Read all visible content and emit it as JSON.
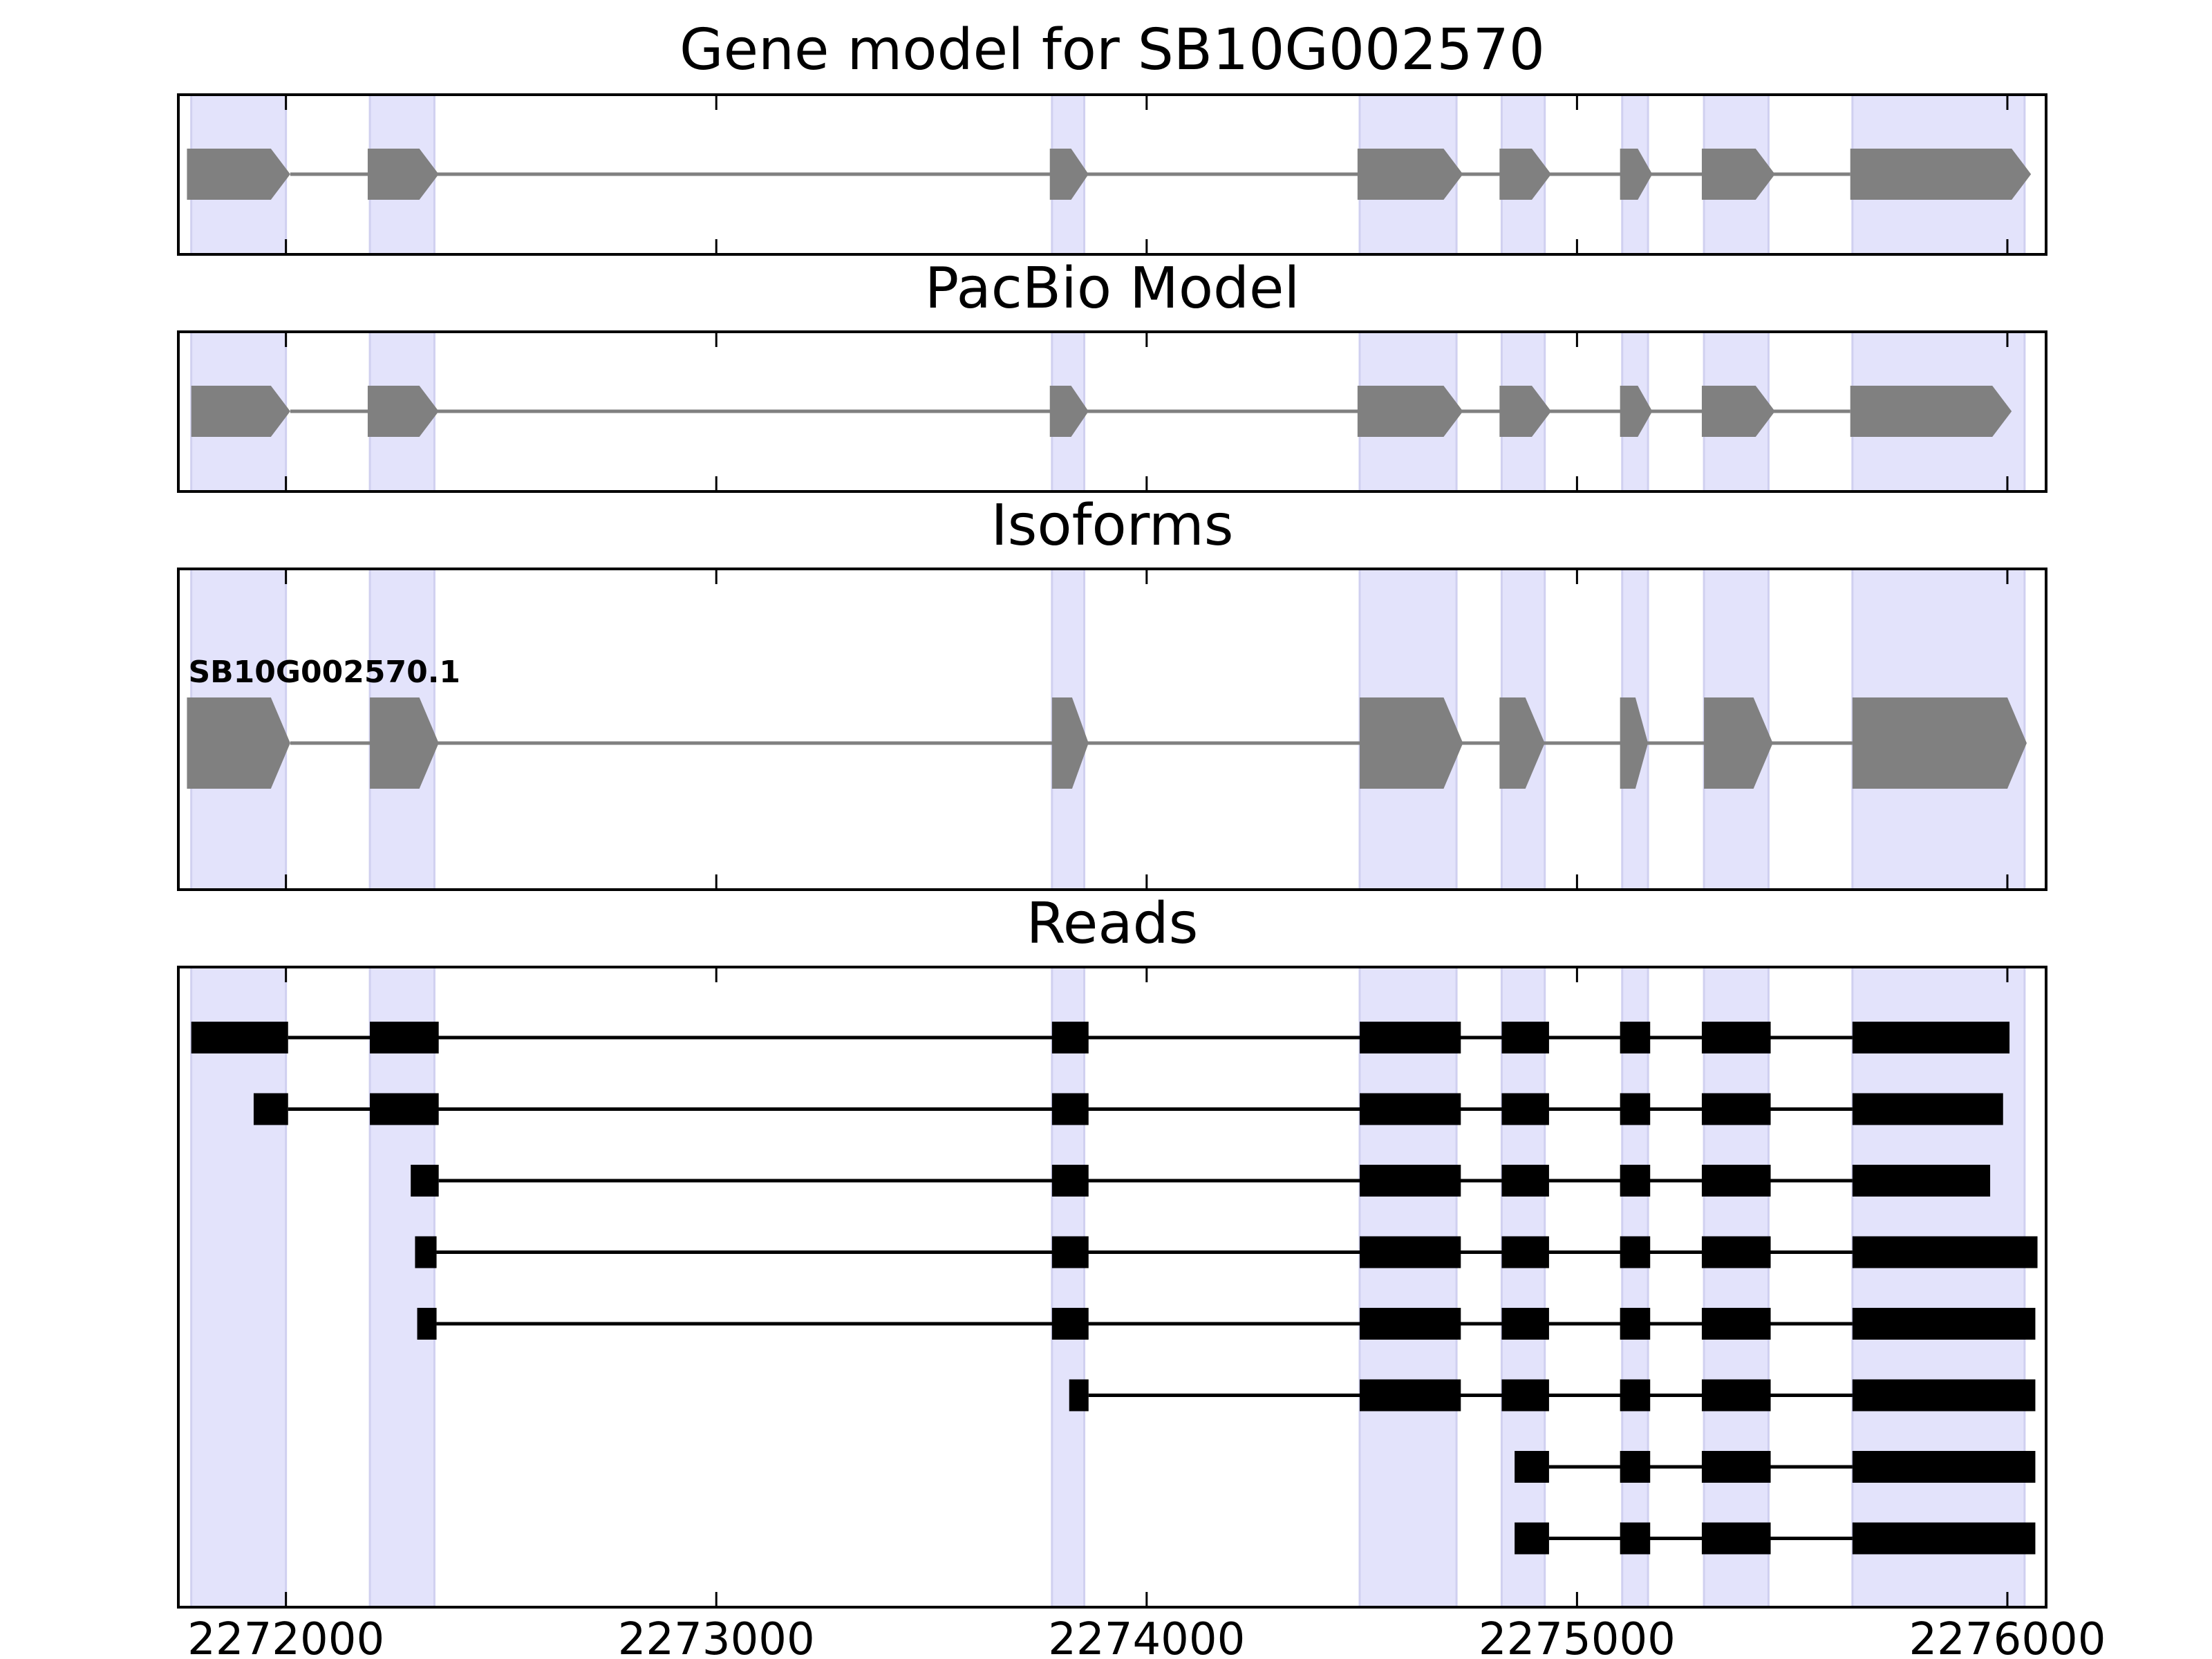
{
  "chart_data": {
    "type": "gene-track",
    "x_range": [
      2271750,
      2276090
    ],
    "x_ticks": [
      2272000,
      2273000,
      2274000,
      2275000,
      2276000
    ],
    "x_tick_labels": [
      "2272000",
      "2273000",
      "2274000",
      "2275000",
      "2276000"
    ],
    "highlight_color": "#e3e3fb",
    "exon_regions": [
      [
        2271780,
        2272000
      ],
      [
        2272195,
        2272345
      ],
      [
        2273780,
        2273855
      ],
      [
        2274495,
        2274720
      ],
      [
        2274825,
        2274925
      ],
      [
        2275105,
        2275165
      ],
      [
        2275295,
        2275445
      ],
      [
        2275640,
        2276040
      ]
    ],
    "panels": [
      {
        "title": "Gene model for SB10G002570",
        "track_type": "model",
        "color": "#808080",
        "features": [
          {
            "exons": [
              [
                2271770,
                2272010
              ],
              [
                2272190,
                2272355
              ],
              [
                2273775,
                2273865
              ],
              [
                2274490,
                2274735
              ],
              [
                2274820,
                2274940
              ],
              [
                2275100,
                2275175
              ],
              [
                2275290,
                2275460
              ],
              [
                2275635,
                2276055
              ]
            ]
          }
        ]
      },
      {
        "title": "PacBio Model",
        "track_type": "model",
        "color": "#808080",
        "features": [
          {
            "exons": [
              [
                2271780,
                2272010
              ],
              [
                2272190,
                2272355
              ],
              [
                2273775,
                2273865
              ],
              [
                2274490,
                2274735
              ],
              [
                2274820,
                2274940
              ],
              [
                2275100,
                2275175
              ],
              [
                2275290,
                2275460
              ],
              [
                2275635,
                2276010
              ]
            ]
          }
        ]
      },
      {
        "title": "Isoforms",
        "track_type": "model",
        "color": "#808080",
        "features": [
          {
            "label": "SB10G002570.1",
            "exons": [
              [
                2271770,
                2272010
              ],
              [
                2272195,
                2272355
              ],
              [
                2273780,
                2273865
              ],
              [
                2274495,
                2274735
              ],
              [
                2274820,
                2274925
              ],
              [
                2275100,
                2275165
              ],
              [
                2275295,
                2275455
              ],
              [
                2275640,
                2276045
              ]
            ]
          }
        ]
      },
      {
        "title": "Reads",
        "track_type": "reads",
        "color": "#000000",
        "features": [
          {
            "exons": [
              [
                2271780,
                2272005
              ],
              [
                2272195,
                2272355
              ],
              [
                2273780,
                2273865
              ],
              [
                2274495,
                2274730
              ],
              [
                2274825,
                2274935
              ],
              [
                2275100,
                2275170
              ],
              [
                2275290,
                2275450
              ],
              [
                2275640,
                2276005
              ]
            ]
          },
          {
            "exons": [
              [
                2271925,
                2272005
              ],
              [
                2272195,
                2272355
              ],
              [
                2273780,
                2273865
              ],
              [
                2274495,
                2274730
              ],
              [
                2274825,
                2274935
              ],
              [
                2275100,
                2275170
              ],
              [
                2275290,
                2275450
              ],
              [
                2275640,
                2275990
              ]
            ]
          },
          {
            "exons": [
              [
                2272290,
                2272355
              ],
              [
                2273780,
                2273865
              ],
              [
                2274495,
                2274730
              ],
              [
                2274825,
                2274935
              ],
              [
                2275100,
                2275170
              ],
              [
                2275290,
                2275450
              ],
              [
                2275640,
                2275960
              ]
            ]
          },
          {
            "exons": [
              [
                2272300,
                2272350
              ],
              [
                2273780,
                2273865
              ],
              [
                2274495,
                2274730
              ],
              [
                2274825,
                2274935
              ],
              [
                2275100,
                2275170
              ],
              [
                2275290,
                2275450
              ],
              [
                2275640,
                2276070
              ]
            ]
          },
          {
            "exons": [
              [
                2272305,
                2272350
              ],
              [
                2273780,
                2273865
              ],
              [
                2274495,
                2274730
              ],
              [
                2274825,
                2274935
              ],
              [
                2275100,
                2275170
              ],
              [
                2275290,
                2275450
              ],
              [
                2275640,
                2276065
              ]
            ]
          },
          {
            "exons": [
              [
                2273820,
                2273865
              ],
              [
                2274495,
                2274730
              ],
              [
                2274825,
                2274935
              ],
              [
                2275100,
                2275170
              ],
              [
                2275290,
                2275450
              ],
              [
                2275640,
                2276065
              ]
            ]
          },
          {
            "exons": [
              [
                2274855,
                2274935
              ],
              [
                2275100,
                2275170
              ],
              [
                2275290,
                2275450
              ],
              [
                2275640,
                2276065
              ]
            ]
          },
          {
            "exons": [
              [
                2274855,
                2274935
              ],
              [
                2275100,
                2275170
              ],
              [
                2275290,
                2275450
              ],
              [
                2275640,
                2276065
              ]
            ]
          }
        ]
      }
    ]
  }
}
